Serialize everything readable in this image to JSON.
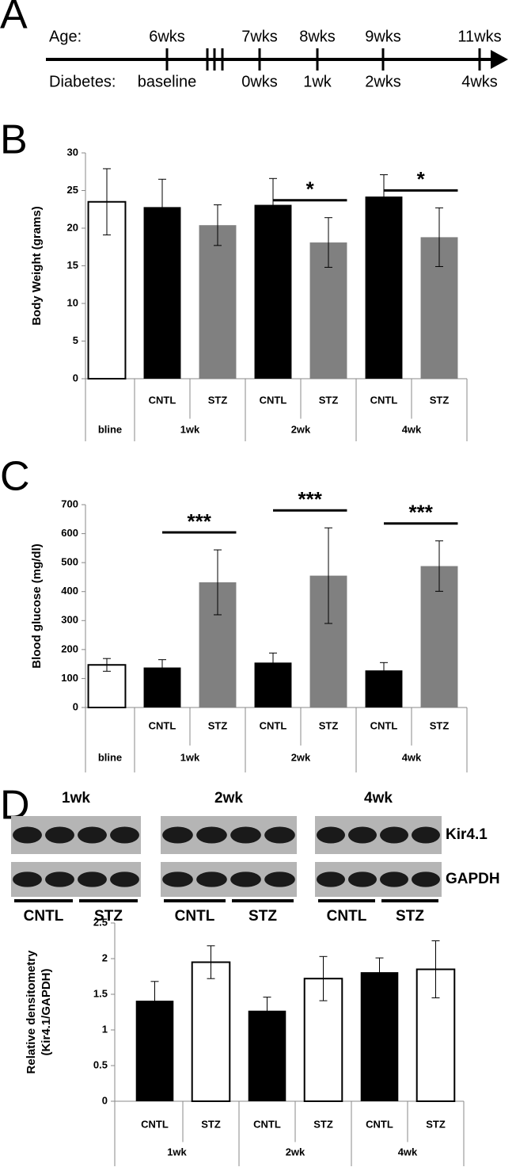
{
  "panel_labels": [
    "A",
    "B",
    "C",
    "D"
  ],
  "timeline": {
    "age_label": "Age:",
    "diabetes_label": "Diabetes:",
    "points": [
      {
        "age": "6wks",
        "diabetes": "baseline"
      },
      {
        "age": "7wks",
        "diabetes": "0wks"
      },
      {
        "age": "8wks",
        "diabetes": "1wk"
      },
      {
        "age": "9wks",
        "diabetes": "2wks"
      },
      {
        "age": "11wks",
        "diabetes": "4wks"
      }
    ]
  },
  "chart_data": [
    {
      "type": "bar",
      "ylabel": "Body Weight (grams)",
      "groups": [
        {
          "label": "bline",
          "categories": [
            null
          ]
        },
        {
          "label": "1wk",
          "categories": [
            "CNTL",
            "STZ"
          ]
        },
        {
          "label": "2wk",
          "categories": [
            "CNTL",
            "STZ"
          ]
        },
        {
          "label": "4wk",
          "categories": [
            "CNTL",
            "STZ"
          ]
        }
      ],
      "values": [
        23.5,
        22.8,
        20.4,
        23.1,
        18.1,
        24.2,
        18.8
      ],
      "errors": [
        4.4,
        3.7,
        2.7,
        3.5,
        3.3,
        2.9,
        3.9
      ],
      "colors": [
        "#ffffff",
        "#000000",
        "#808080",
        "#000000",
        "#808080",
        "#000000",
        "#808080"
      ],
      "ylim": [
        0,
        30
      ],
      "yticks": [
        0,
        5,
        10,
        15,
        20,
        25,
        30
      ],
      "annotations": [
        {
          "label": "*",
          "bars": [
            3,
            4
          ]
        },
        {
          "label": "*",
          "bars": [
            5,
            6
          ]
        }
      ]
    },
    {
      "type": "bar",
      "ylabel": "Blood glucose (mg/dl)",
      "groups": [
        {
          "label": "bline",
          "categories": [
            null
          ]
        },
        {
          "label": "1wk",
          "categories": [
            "CNTL",
            "STZ"
          ]
        },
        {
          "label": "2wk",
          "categories": [
            "CNTL",
            "STZ"
          ]
        },
        {
          "label": "4wk",
          "categories": [
            "CNTL",
            "STZ"
          ]
        }
      ],
      "values": [
        147,
        138,
        432,
        155,
        455,
        128,
        488
      ],
      "errors": [
        22,
        27,
        112,
        33,
        165,
        27,
        87
      ],
      "colors": [
        "#ffffff",
        "#000000",
        "#808080",
        "#000000",
        "#808080",
        "#000000",
        "#808080"
      ],
      "ylim": [
        0,
        700
      ],
      "yticks": [
        0,
        100,
        200,
        300,
        400,
        500,
        600,
        700
      ],
      "annotations": [
        {
          "label": "***",
          "bars": [
            1,
            2
          ]
        },
        {
          "label": "***",
          "bars": [
            3,
            4
          ]
        },
        {
          "label": "***",
          "bars": [
            5,
            6
          ]
        }
      ]
    },
    {
      "type": "bar",
      "ylabel": [
        "Relative densitometry",
        "(Kir4.1/GAPDH)"
      ],
      "groups": [
        {
          "label": "1wk",
          "categories": [
            "CNTL",
            "STZ"
          ]
        },
        {
          "label": "2wk",
          "categories": [
            "CNTL",
            "STZ"
          ]
        },
        {
          "label": "4wk",
          "categories": [
            "CNTL",
            "STZ"
          ]
        }
      ],
      "values": [
        1.41,
        1.95,
        1.27,
        1.72,
        1.81,
        1.85
      ],
      "errors": [
        0.27,
        0.23,
        0.19,
        0.31,
        0.2,
        0.4
      ],
      "colors": [
        "#000000",
        "#ffffff",
        "#000000",
        "#ffffff",
        "#000000",
        "#ffffff"
      ],
      "ylim": [
        0,
        2.5
      ],
      "yticks": [
        0,
        0.5,
        1,
        1.5,
        2,
        2.5
      ]
    }
  ],
  "blots": {
    "headers": [
      "1wk",
      "2wk",
      "4wk"
    ],
    "rows": [
      "Kir4.1",
      "GAPDH"
    ],
    "conditions": [
      "CNTL",
      "STZ"
    ]
  }
}
